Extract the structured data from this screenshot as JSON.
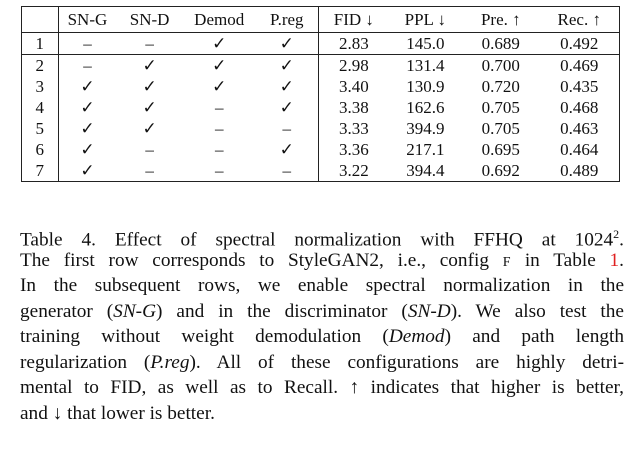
{
  "table": {
    "headers": [
      "",
      "SN-G",
      "SN-D",
      "Demod",
      "P.reg",
      "FID ↓",
      "PPL ↓",
      "Pre. ↑",
      "Rec. ↑"
    ],
    "rows": [
      {
        "idx": "1",
        "sng": "–",
        "snd": "–",
        "demod": "✓",
        "preg": "✓",
        "fid": "2.83",
        "ppl": "145.0",
        "pre": "0.689",
        "rec": "0.492"
      },
      {
        "idx": "2",
        "sng": "–",
        "snd": "✓",
        "demod": "✓",
        "preg": "✓",
        "fid": "2.98",
        "ppl": "131.4",
        "pre": "0.700",
        "rec": "0.469"
      },
      {
        "idx": "3",
        "sng": "✓",
        "snd": "✓",
        "demod": "✓",
        "preg": "✓",
        "fid": "3.40",
        "ppl": "130.9",
        "pre": "0.720",
        "rec": "0.435"
      },
      {
        "idx": "4",
        "sng": "✓",
        "snd": "✓",
        "demod": "–",
        "preg": "✓",
        "fid": "3.38",
        "ppl": "162.6",
        "pre": "0.705",
        "rec": "0.468"
      },
      {
        "idx": "5",
        "sng": "✓",
        "snd": "✓",
        "demod": "–",
        "preg": "–",
        "fid": "3.33",
        "ppl": "394.9",
        "pre": "0.705",
        "rec": "0.463"
      },
      {
        "idx": "6",
        "sng": "✓",
        "snd": "–",
        "demod": "–",
        "preg": "✓",
        "fid": "3.36",
        "ppl": "217.1",
        "pre": "0.695",
        "rec": "0.464"
      },
      {
        "idx": "7",
        "sng": "✓",
        "snd": "–",
        "demod": "–",
        "preg": "–",
        "fid": "3.22",
        "ppl": "394.4",
        "pre": "0.692",
        "rec": "0.489"
      }
    ]
  },
  "caption": {
    "l1a": "Table 4.   Effect of spectral normalization with FFHQ at ",
    "l1b": "1024",
    "l1sup": "2",
    "l1c": ".",
    "l2a": "The first row corresponds to StyleGAN2, i.e., config ",
    "l2sc": "F",
    "l2b": " in Table ",
    "l2ref": "1",
    "l2c": ".",
    "l3": "In the subsequent rows, we enable spectral normalization in the",
    "l4a": "generator (",
    "l4i1": "SN-G",
    "l4b": ") and in the discriminator (",
    "l4i2": "SN-D",
    "l4c": "). We also test the",
    "l5a": "training without weight demodulation (",
    "l5i": "Demod",
    "l5b": ") and path length",
    "l6a": "regularization (",
    "l6i": "P.reg",
    "l6b": "). All of these configurations are highly detri-",
    "l7": "mental to FID, as well as to Recall. ↑ indicates that higher is better,",
    "l8": "and ↓ that lower is better."
  }
}
